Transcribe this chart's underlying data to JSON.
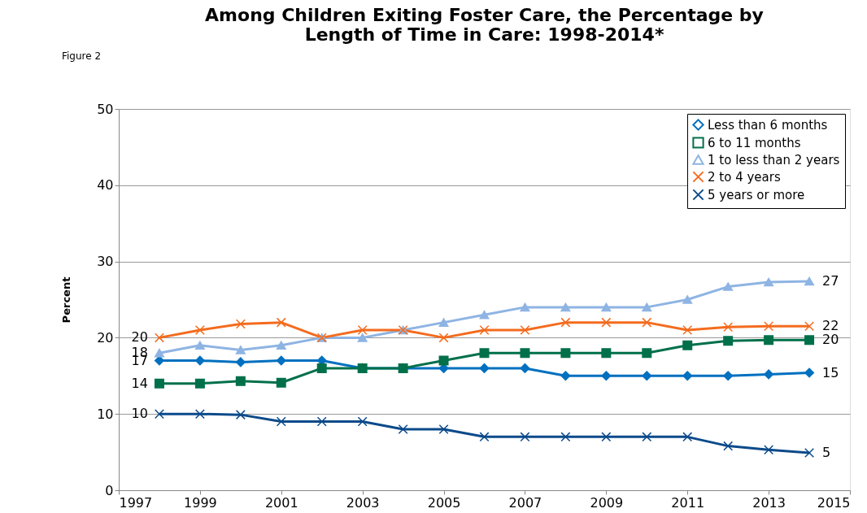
{
  "chart_data": {
    "type": "line",
    "title": [
      "Among Children Exiting Foster Care, the Percentage by",
      "Length of Time in Care: 1998-2014*"
    ],
    "ylabel": "Percent",
    "annotations": [
      "Figure 2"
    ],
    "x": [
      1998,
      1999,
      2000,
      2001,
      2002,
      2003,
      2004,
      2005,
      2006,
      2007,
      2008,
      2009,
      2010,
      2011,
      2012,
      2013,
      2014
    ],
    "xlim": [
      1997,
      2015
    ],
    "xticks": [
      1997,
      1999,
      2001,
      2003,
      2005,
      2007,
      2009,
      2011,
      2013,
      2015
    ],
    "ylim": [
      0,
      50
    ],
    "yticks": [
      0,
      10,
      20,
      30,
      40,
      50
    ],
    "grid": "y",
    "legend": "top right",
    "series": [
      {
        "name": "Less than 6 months",
        "color": "#0070c0",
        "marker": "diamond",
        "values": [
          17,
          17,
          16.8,
          17,
          17,
          16,
          16,
          16,
          16,
          16,
          15,
          15,
          15,
          15,
          15,
          15.2,
          15.4
        ],
        "value_labels": [
          "17",
          null,
          null,
          null,
          null,
          null,
          null,
          null,
          null,
          null,
          null,
          null,
          null,
          null,
          null,
          null,
          "15"
        ]
      },
      {
        "name": "6  to 11 months",
        "color": "#00704a",
        "marker": "square",
        "values": [
          14,
          14,
          14.3,
          14.1,
          16,
          16,
          16,
          17,
          18,
          18,
          18,
          18,
          18,
          19,
          19.6,
          19.7,
          19.7
        ],
        "value_labels": [
          "14",
          null,
          null,
          null,
          null,
          null,
          null,
          null,
          null,
          null,
          null,
          null,
          null,
          null,
          null,
          null,
          "20"
        ]
      },
      {
        "name": "1 to less than 2 years",
        "color": "#8eb4e3",
        "marker": "triangle",
        "values": [
          18,
          19,
          18.4,
          19,
          20,
          20,
          21,
          22,
          23,
          24,
          24,
          24,
          24,
          25,
          26.7,
          27.3,
          27.4
        ],
        "value_labels": [
          "18",
          null,
          null,
          null,
          null,
          null,
          null,
          null,
          null,
          null,
          null,
          null,
          null,
          null,
          null,
          null,
          "27"
        ]
      },
      {
        "name": "2 to 4 years",
        "color": "#f46b1e",
        "marker": "cross",
        "values": [
          20,
          21,
          21.8,
          22,
          20,
          21,
          21,
          20,
          21,
          21,
          22,
          22,
          22,
          21,
          21.4,
          21.5,
          21.5
        ],
        "value_labels": [
          "20",
          null,
          null,
          null,
          null,
          null,
          null,
          null,
          null,
          null,
          null,
          null,
          null,
          null,
          null,
          null,
          "22"
        ]
      },
      {
        "name": "5 years or more",
        "color": "#0b4a8a",
        "marker": "cross",
        "values": [
          10,
          10,
          9.9,
          9,
          9,
          9,
          8,
          8,
          7,
          7,
          7,
          7,
          7,
          7,
          5.8,
          5.3,
          4.9
        ],
        "value_labels": [
          "10",
          null,
          null,
          null,
          null,
          null,
          null,
          null,
          null,
          null,
          null,
          null,
          null,
          null,
          null,
          null,
          "5"
        ]
      }
    ]
  }
}
